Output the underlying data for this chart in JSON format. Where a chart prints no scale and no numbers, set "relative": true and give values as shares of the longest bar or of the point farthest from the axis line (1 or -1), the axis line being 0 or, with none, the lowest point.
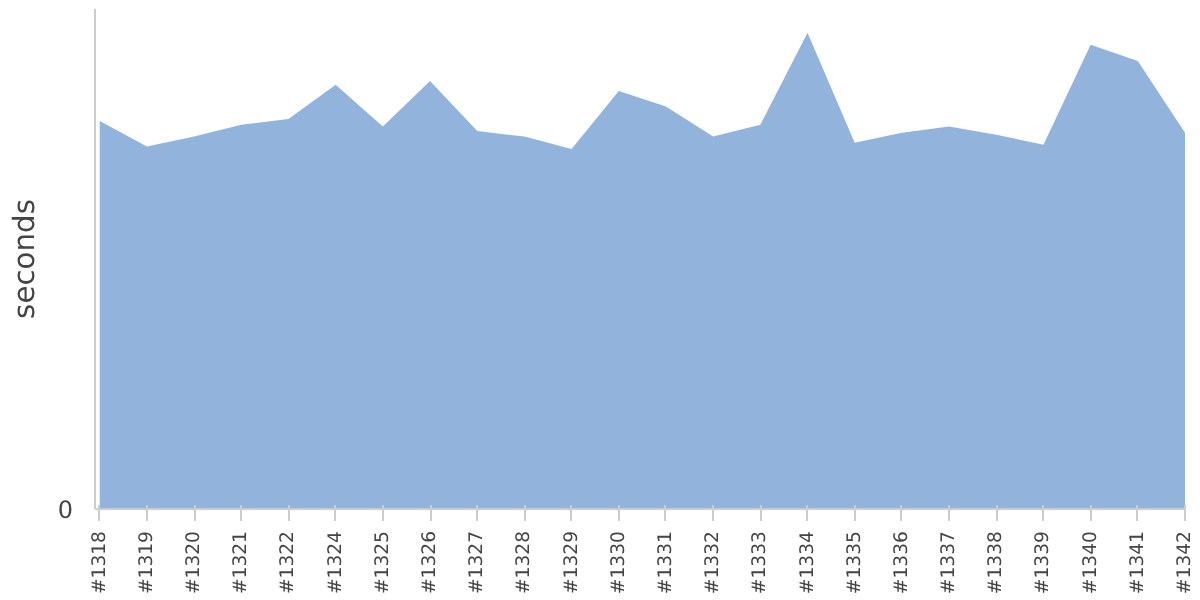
{
  "chart_data": {
    "type": "area",
    "ylabel": "seconds",
    "relative": true,
    "annotations": [
      "0"
    ],
    "color": "#92b3dc",
    "grid": false,
    "categories": [
      "#1318",
      "#1319",
      "#1320",
      "#1321",
      "#1322",
      "#1324",
      "#1325",
      "#1326",
      "#1327",
      "#1328",
      "#1329",
      "#1330",
      "#1331",
      "#1332",
      "#1333",
      "#1334",
      "#1335",
      "#1336",
      "#1337",
      "#1338",
      "#1339",
      "#1340",
      "#1341",
      "#1342"
    ],
    "values": [
      0.815,
      0.761,
      0.782,
      0.807,
      0.819,
      0.891,
      0.803,
      0.899,
      0.794,
      0.782,
      0.756,
      0.878,
      0.845,
      0.782,
      0.807,
      1,
      0.769,
      0.79,
      0.803,
      0.786,
      0.765,
      0.975,
      0.941,
      0.79
    ]
  }
}
